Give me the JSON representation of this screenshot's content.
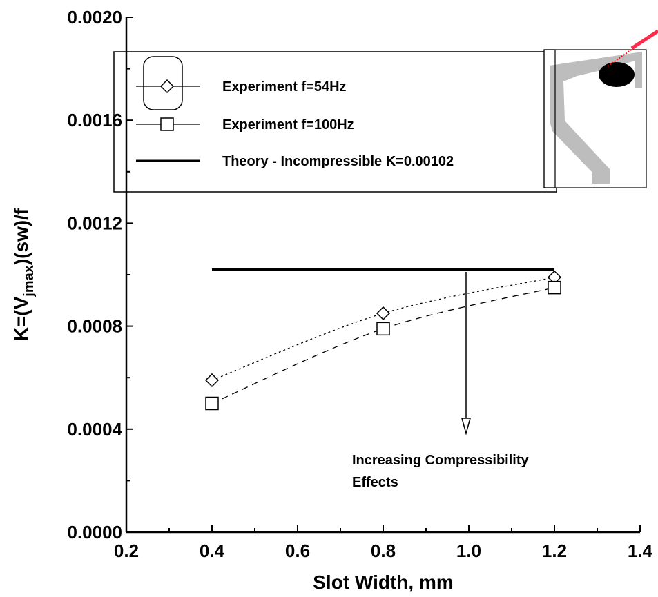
{
  "chart_data": {
    "type": "line",
    "xlabel": "Slot Width, mm",
    "ylabel": [
      "K=(V",
      "jmax",
      ")(sw)/f"
    ],
    "xlim": [
      0.2,
      1.4
    ],
    "xticks": [
      0.2,
      0.4,
      0.6,
      0.8,
      {
        "value": 1,
        "label": "1.0"
      },
      1.2,
      1.4
    ],
    "ylim": [
      0,
      0.002
    ],
    "yticks": [
      {
        "value": 0,
        "label": "0.0000"
      },
      {
        "value": 0.0004,
        "label": "0.0004"
      },
      {
        "value": 0.0008,
        "label": "0.0008"
      },
      {
        "value": 0.0012,
        "label": "0.0012"
      },
      {
        "value": 0.0016,
        "label": "0.0016"
      },
      {
        "value": 0.002,
        "label": "0.0020"
      }
    ],
    "series": [
      {
        "name": "Experiment f=54Hz",
        "color": "#000000",
        "marker": "diamond",
        "dash": "3,4",
        "x": [
          0.4,
          0.8,
          1.2
        ],
        "values": [
          0.00059,
          0.00085,
          0.00099
        ]
      },
      {
        "name": "Experiment f=100Hz",
        "color": "#000000",
        "marker": "square",
        "dash": "9,7",
        "x": [
          0.4,
          0.8,
          1.2
        ],
        "values": [
          0.0005,
          0.00079,
          0.00095
        ]
      },
      {
        "name": "Theory - Incompressible K=0.00102",
        "color": "#000000",
        "marker": "none",
        "x": [
          0.4,
          1.2
        ],
        "values": [
          0.00102,
          0.00102
        ]
      }
    ],
    "annotation": [
      "Increasing Compressibility",
      "Effects"
    ]
  }
}
